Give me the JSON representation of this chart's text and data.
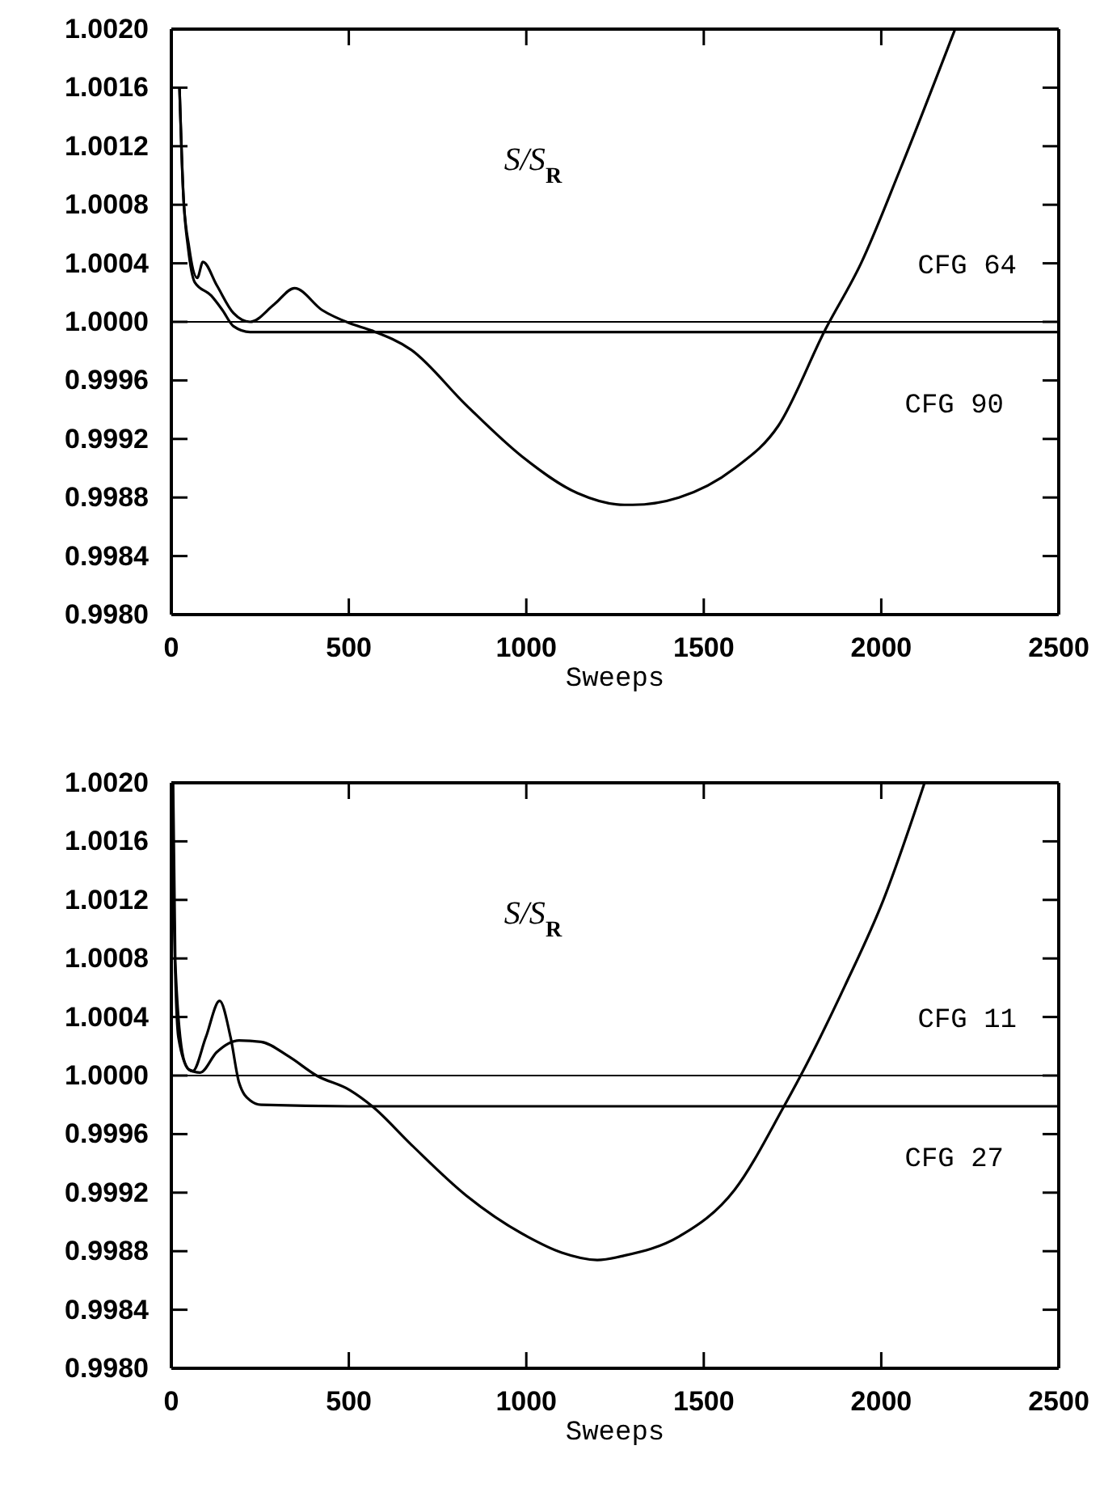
{
  "chart_data": [
    {
      "type": "line",
      "xlabel": "Sweeps",
      "annotations": [
        "S/S$_{R}$"
      ],
      "xlim": [
        0,
        2500
      ],
      "xticks": [
        0,
        500,
        1000,
        1500,
        2000,
        2500
      ],
      "ylim": [
        0.998,
        1.002
      ],
      "yticks": [
        {
          "value": 0.998,
          "label": "0.9980"
        },
        {
          "value": 0.9984,
          "label": "0.9984"
        },
        {
          "value": 0.9988,
          "label": "0.9988"
        },
        {
          "value": 0.9992,
          "label": "0.9992"
        },
        {
          "value": 0.9996,
          "label": "0.9996"
        },
        {
          "value": 1.0,
          "label": "1.0000"
        },
        {
          "value": 1.0004,
          "label": "1.0004"
        },
        {
          "value": 1.0008,
          "label": "1.0008"
        },
        {
          "value": 1.0012,
          "label": "1.0012"
        },
        {
          "value": 1.0016,
          "label": "1.0016"
        },
        {
          "value": 1.002,
          "label": "1.0020"
        }
      ],
      "grid": false,
      "legend": "right",
      "marker": "none",
      "line_style": "solid",
      "ref_lines": [
        {
          "axis": "y",
          "value": 1.0,
          "color": "#000000"
        }
      ],
      "series": [
        {
          "name": "CFG 64",
          "color": "#000000",
          "x": [
            23,
            34,
            50,
            73,
            89,
            128,
            175,
            222,
            290,
            347,
            425,
            503,
            565,
            675,
            831,
            988,
            1144,
            1276,
            1300,
            1430,
            1587,
            1710,
            1843,
            1943,
            2053,
            2208
          ],
          "values": [
            1.0016,
            1.00086,
            1.00051,
            1.0003,
            1.00041,
            1.00025,
            1.00006,
            1.0,
            1.00012,
            1.00023,
            1.00008,
            0.99999,
            0.99994,
            0.99981,
            0.99943,
            0.99908,
            0.99883,
            0.99875,
            0.99875,
            0.9988,
            0.999,
            0.99929,
            0.99995,
            1.0004,
            1.00104,
            1.002
          ]
        },
        {
          "name": "CFG 90",
          "color": "#000000",
          "x": [
            23,
            34,
            47,
            66,
            112,
            144,
            175,
            222,
            300,
            500,
            1000,
            1500,
            2000,
            2500
          ],
          "values": [
            1.0016,
            1.00086,
            1.00051,
            1.00027,
            1.00018,
            1.00008,
            0.99997,
            0.99993,
            0.99993,
            0.99993,
            0.99993,
            0.99993,
            0.99993,
            0.99993
          ]
        }
      ]
    },
    {
      "type": "line",
      "xlabel": "Sweeps",
      "annotations": [
        "S/S$_{R}$"
      ],
      "xlim": [
        0,
        2500
      ],
      "xticks": [
        0,
        500,
        1000,
        1500,
        2000,
        2500
      ],
      "ylim": [
        0.998,
        1.002
      ],
      "yticks": [
        {
          "value": 0.998,
          "label": "0.9980"
        },
        {
          "value": 0.9984,
          "label": "0.9984"
        },
        {
          "value": 0.9988,
          "label": "0.9988"
        },
        {
          "value": 0.9992,
          "label": "0.9992"
        },
        {
          "value": 0.9996,
          "label": "0.9996"
        },
        {
          "value": 1.0,
          "label": "1.0000"
        },
        {
          "value": 1.0004,
          "label": "1.0004"
        },
        {
          "value": 1.0008,
          "label": "1.0008"
        },
        {
          "value": 1.0012,
          "label": "1.0012"
        },
        {
          "value": 1.0016,
          "label": "1.0016"
        },
        {
          "value": 1.002,
          "label": "1.0020"
        }
      ],
      "grid": false,
      "legend": "right",
      "marker": "none",
      "line_style": "solid",
      "ref_lines": [
        {
          "axis": "y",
          "value": 1.0,
          "color": "#000000"
        }
      ],
      "series": [
        {
          "name": "CFG 11",
          "color": "#000000",
          "x": [
            5,
            11,
            34,
            50,
            81,
            128,
            191,
            253,
            331,
            409,
            503,
            566,
            675,
            831,
            1003,
            1100,
            1200,
            1276,
            1430,
            1587,
            1726,
            1773,
            1897,
            2006,
            2122
          ],
          "values": [
            1.002,
            1.00078,
            1.00012,
            1.00004,
            1.00002,
            1.00016,
            1.00024,
            1.00023,
            1.00013,
            1.0,
            0.9999,
            0.99979,
            0.99953,
            0.99918,
            0.9989,
            0.99879,
            0.99874,
            0.99877,
            0.9989,
            0.99922,
            0.99979,
            1.0,
            1.00061,
            1.0012,
            1.002
          ]
        },
        {
          "name": "CFG 27",
          "color": "#000000",
          "x": [
            3,
            6,
            20,
            50,
            60,
            97,
            136,
            167,
            191,
            222,
            253,
            500,
            1000,
            1500,
            2000,
            2500
          ],
          "values": [
            1.002,
            1.0013,
            1.00026,
            1.00004,
            1.00003,
            1.00026,
            1.00051,
            1.00026,
            0.99995,
            0.99983,
            0.9998,
            0.99979,
            0.99979,
            0.99979,
            0.99979,
            0.99979
          ]
        }
      ]
    }
  ]
}
